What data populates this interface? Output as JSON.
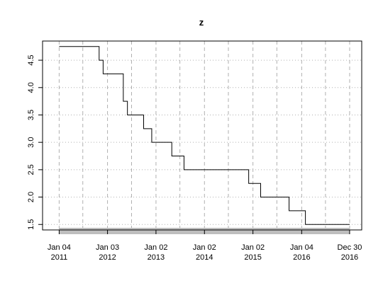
{
  "chart_data": {
    "type": "line",
    "title": "z",
    "xlabel": "",
    "ylabel": "",
    "x_axis_type": "date",
    "xlim": [
      "2010-09-01",
      "2017-03-31"
    ],
    "ylim": [
      1.4,
      4.85
    ],
    "yticks": [
      1.5,
      2.0,
      2.5,
      3.0,
      3.5,
      4.0,
      4.5
    ],
    "ytick_labels": [
      "1.5",
      "2.0",
      "2.5",
      "3.0",
      "3.5",
      "4.0",
      "4.5"
    ],
    "xticks": [
      {
        "date": "2011-01-04",
        "line1": "Jan 04",
        "line2": "2011"
      },
      {
        "date": "2012-01-03",
        "line1": "Jan 03",
        "line2": "2012"
      },
      {
        "date": "2013-01-02",
        "line1": "Jan 02",
        "line2": "2013"
      },
      {
        "date": "2014-01-02",
        "line1": "Jan 02",
        "line2": "2014"
      },
      {
        "date": "2015-01-02",
        "line1": "Jan 02",
        "line2": "2015"
      },
      {
        "date": "2016-01-04",
        "line1": "Jan 04",
        "line2": "2016"
      },
      {
        "date": "2016-12-30",
        "line1": "Dec 30",
        "line2": "2016"
      }
    ],
    "minor_grid_dates": [
      "2011-07-01",
      "2012-07-02",
      "2013-07-01",
      "2014-07-01",
      "2015-07-01",
      "2016-07-01"
    ],
    "grid": true,
    "line_style": "step",
    "series": [
      {
        "x": [
          "2011-01-04",
          "2011-11-01",
          "2011-12-01",
          "2012-05-01",
          "2012-06-01",
          "2012-10-01",
          "2012-12-01",
          "2013-05-01",
          "2013-08-01",
          "2014-12-01",
          "2015-03-01",
          "2015-10-01",
          "2016-02-01",
          "2016-12-30"
        ],
        "values": [
          4.75,
          4.5,
          4.25,
          3.75,
          3.5,
          3.25,
          3.0,
          2.75,
          2.5,
          2.25,
          2.0,
          1.75,
          1.5,
          1.5
        ]
      }
    ],
    "colors": {
      "line": "#000000",
      "grid": "#b0b0b0",
      "xbar": "#bebebe"
    }
  }
}
